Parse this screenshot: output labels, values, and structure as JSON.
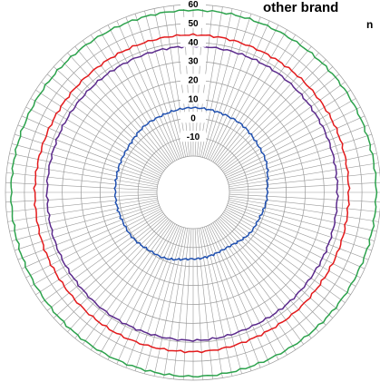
{
  "chart_data": {
    "type": "line",
    "subtype": "polar",
    "title": "other brand",
    "subtitle": "n",
    "r_ticks": [
      -10,
      0,
      10,
      20,
      30,
      40,
      50,
      60
    ],
    "r_range": [
      -20,
      60
    ],
    "angular_divisions": 120,
    "grid": true,
    "series": [
      {
        "color": "#2ca24c",
        "angles_deg": [
          0,
          30,
          60,
          90,
          120,
          150,
          180,
          210,
          240,
          270,
          300,
          330
        ],
        "values": [
          57.0,
          57.0,
          57.5,
          57.5,
          57.5,
          57.5,
          58.0,
          58.0,
          57.5,
          57.0,
          57.0,
          57.0
        ]
      },
      {
        "color": "#e31a1c",
        "angles_deg": [
          0,
          30,
          60,
          90,
          120,
          150,
          180,
          210,
          240,
          270,
          300,
          330
        ],
        "values": [
          44.0,
          43.5,
          43.5,
          43.0,
          43.5,
          44.0,
          45.0,
          45.5,
          45.0,
          44.5,
          44.0,
          44.0
        ]
      },
      {
        "color": "#5b2a8c",
        "angles_deg": [
          0,
          30,
          60,
          90,
          120,
          150,
          180,
          210,
          240,
          270,
          300,
          330
        ],
        "values": [
          38.0,
          38.0,
          37.5,
          37.0,
          37.5,
          38.0,
          39.0,
          39.0,
          38.5,
          38.0,
          38.0,
          38.0
        ]
      },
      {
        "color": "#2050b0",
        "angles_deg": [
          0,
          30,
          60,
          90,
          120,
          150,
          180,
          210,
          240,
          270,
          300,
          330
        ],
        "values": [
          5.5,
          5.0,
          3.0,
          0.0,
          -2.0,
          -5.0,
          -4.0,
          -1.0,
          1.0,
          2.0,
          2.5,
          4.5
        ]
      }
    ]
  }
}
